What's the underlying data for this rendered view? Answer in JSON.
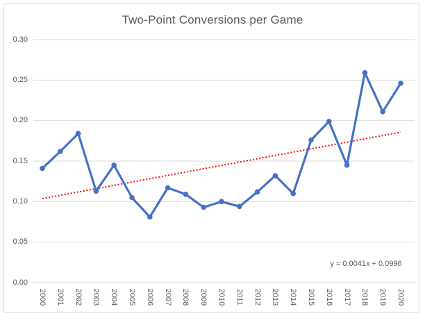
{
  "chart_data": {
    "type": "line",
    "title": "Two-Point Conversions per Game",
    "categories": [
      "2000",
      "2001",
      "2002",
      "2003",
      "2004",
      "2005",
      "2006",
      "2007",
      "2008",
      "2009",
      "2010",
      "2011",
      "2012",
      "2013",
      "2014",
      "2015",
      "2016",
      "2017",
      "2018",
      "2019",
      "2020"
    ],
    "series": [
      {
        "name": "Two-Point Conversions per Game",
        "color": "#4472C4",
        "marker": "circle",
        "values": [
          0.141,
          0.162,
          0.184,
          0.113,
          0.145,
          0.105,
          0.081,
          0.117,
          0.109,
          0.093,
          0.1,
          0.094,
          0.112,
          0.132,
          0.11,
          0.176,
          0.199,
          0.145,
          0.259,
          0.211,
          0.246
        ]
      }
    ],
    "trendline": {
      "equation_label": "y = 0.0041x + 0.0996",
      "slope": 0.0041,
      "intercept": 0.0996,
      "color": "#FF0000",
      "style": "dotted"
    },
    "xlabel": "",
    "ylabel": "",
    "ylim": [
      0,
      0.3
    ],
    "ytick_step": 0.05,
    "ytick_labels": [
      "0.00",
      "0.05",
      "0.10",
      "0.15",
      "0.20",
      "0.25",
      "0.30"
    ],
    "grid": true,
    "legend": "none",
    "colors": {
      "background": "#FFFFFF",
      "border": "#D9D9D9",
      "gridline": "#D9D9D9",
      "axis_line": "#D9D9D9",
      "text": "#595959"
    }
  }
}
